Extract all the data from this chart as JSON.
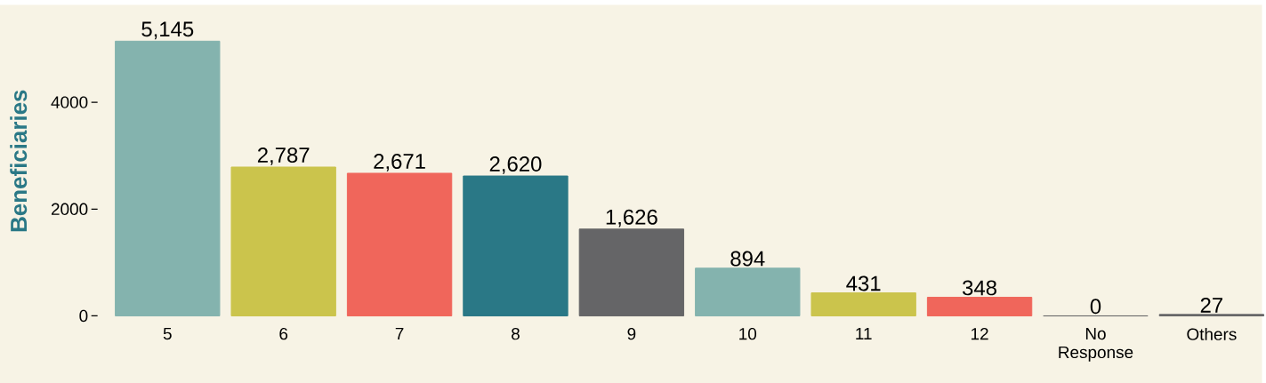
{
  "chart_data": {
    "type": "bar",
    "ylabel": "Beneficiaries",
    "categories": [
      "5",
      "6",
      "7",
      "8",
      "9",
      "10",
      "11",
      "12",
      "No Response",
      "Others"
    ],
    "values": [
      5145,
      2787,
      2671,
      2620,
      1626,
      894,
      431,
      348,
      0,
      27
    ],
    "value_labels": [
      "5,145",
      "2,787",
      "2,671",
      "2,620",
      "1,626",
      "894",
      "431",
      "348",
      "0",
      "27"
    ],
    "colors": [
      "#84b3ae",
      "#cbc44c",
      "#f0665b",
      "#2a7886",
      "#656567",
      "#84b3ae",
      "#cbc44c",
      "#f0665b",
      "#656567",
      "#656567"
    ],
    "ylim": [
      0,
      5800
    ],
    "yticks": [
      0,
      2000,
      4000
    ],
    "grid": false
  }
}
